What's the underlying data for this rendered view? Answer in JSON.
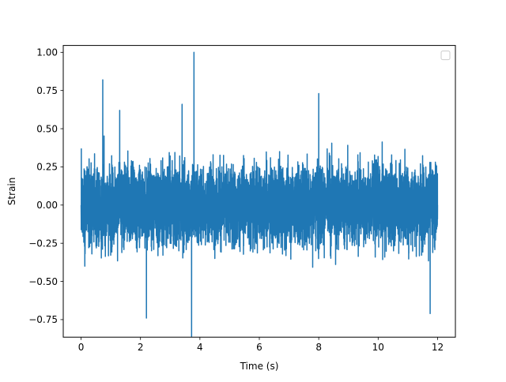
{
  "chart_data": {
    "type": "line",
    "title": "",
    "xlabel": "Time (s)",
    "ylabel": "Strain",
    "xlim": [
      -0.6,
      12.6
    ],
    "ylim": [
      -0.865,
      1.045
    ],
    "xticks": [
      0,
      2,
      4,
      6,
      8,
      10,
      12
    ],
    "xtick_labels": [
      "0",
      "2",
      "4",
      "6",
      "8",
      "10",
      "12"
    ],
    "yticks": [
      -0.75,
      -0.5,
      -0.25,
      0.0,
      0.25,
      0.5,
      0.75,
      1.0
    ],
    "ytick_labels": [
      "−0.75",
      "−0.50",
      "−0.25",
      "0.00",
      "0.25",
      "0.50",
      "0.75",
      "1.00"
    ],
    "grid": false,
    "legend": {
      "placement": "top-right",
      "entries": []
    },
    "series": [
      {
        "color": "#1f77b4",
        "x_start": 0.0,
        "x_end": 12.0,
        "typical_envelope": [
          -0.4,
          0.4
        ],
        "notable_points": [
          {
            "x": 0.0,
            "y": 0.0
          },
          {
            "x": 0.73,
            "y": 0.82
          },
          {
            "x": 1.3,
            "y": 0.62
          },
          {
            "x": 2.2,
            "y": -0.74
          },
          {
            "x": 3.4,
            "y": 0.66
          },
          {
            "x": 3.72,
            "y": -0.86
          },
          {
            "x": 3.8,
            "y": 1.0
          },
          {
            "x": 8.0,
            "y": 0.73
          },
          {
            "x": 11.75,
            "y": -0.71
          },
          {
            "x": 12.0,
            "y": 0.0
          }
        ]
      }
    ]
  }
}
